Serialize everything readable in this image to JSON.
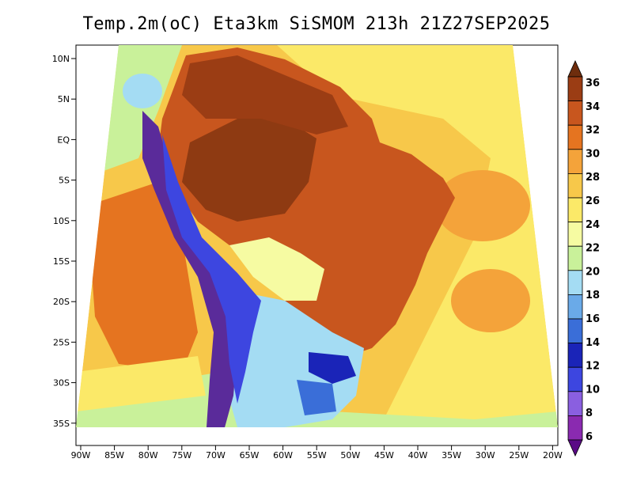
{
  "title": "Temp.2m(oC) Eta3km SiSMOM 213h 21Z27SEP2025",
  "lat_labels": [
    "10N",
    "5N",
    "EQ",
    "5S",
    "10S",
    "15S",
    "20S",
    "25S",
    "30S",
    "35S"
  ],
  "lon_labels": [
    "90W",
    "85W",
    "80W",
    "75W",
    "70W",
    "65W",
    "60W",
    "55W",
    "50W",
    "45W",
    "40W",
    "35W",
    "30W",
    "25W",
    "20W"
  ],
  "colorbar": {
    "labels": [
      "36",
      "34",
      "32",
      "30",
      "28",
      "26",
      "24",
      "22",
      "20",
      "18",
      "16",
      "14",
      "12",
      "10",
      "8",
      "6"
    ],
    "colors": [
      "#6e2d0d",
      "#9b3d14",
      "#c8561e",
      "#e57420",
      "#f4a33a",
      "#f7c84a",
      "#fbe968",
      "#f6fba2",
      "#c9f19a",
      "#a4dcf3",
      "#6aaae8",
      "#3a6ed8",
      "#1a24b8",
      "#3d46e0",
      "#8a5fe0",
      "#8a2ab0",
      "#5a0a86"
    ]
  },
  "regions": {
    "ocean_warm": "#f4a33a",
    "ocean_hot": "#e57420",
    "ocean_mild": "#fbe968",
    "ocean_cool": "#c9f19a",
    "amazon": "#8e3a12",
    "land_hot": "#c8561e",
    "andes": "#5a2b9a",
    "pampa_cool": "#a4dcf3",
    "cold_spot": "#1a24b8"
  }
}
